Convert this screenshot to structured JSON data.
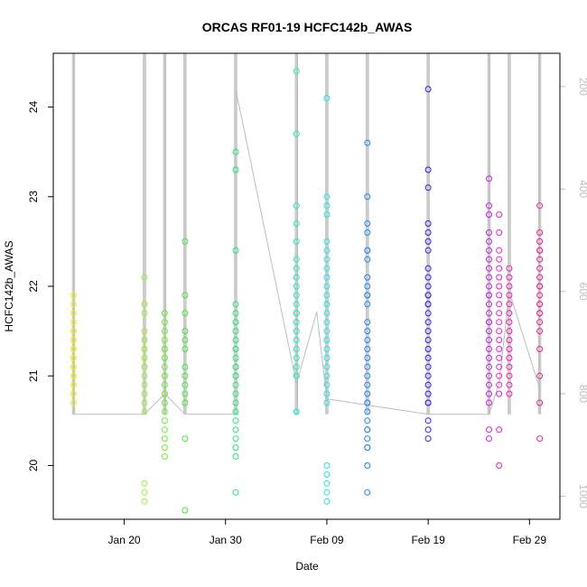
{
  "chart_data": {
    "type": "scatter",
    "title": "ORCAS RF01-19 HCFC142b_AWAS",
    "xlabel": "Date",
    "ylabel": "HCFC142b_AWAS",
    "xlim": [
      "2016-01-13",
      "2016-03-03"
    ],
    "ylim": [
      19.4,
      24.6
    ],
    "yticks": [
      20,
      21,
      22,
      23,
      24
    ],
    "xticks": [
      {
        "date": "2016-01-20",
        "label": "Jan 20"
      },
      {
        "date": "2016-01-30",
        "label": "Jan 30"
      },
      {
        "date": "2016-02-09",
        "label": "Feb 09"
      },
      {
        "date": "2016-02-19",
        "label": "Feb 19"
      },
      {
        "date": "2016-02-29",
        "label": "Feb 29"
      }
    ],
    "y2_axis": {
      "side": "right",
      "description": "altitude trace (reversed)",
      "lim": [
        1045,
        135
      ],
      "ticks": [
        200,
        400,
        600,
        800,
        1000
      ],
      "color": "#bdbdbd"
    },
    "grid": false,
    "legend": "none",
    "series": [
      {
        "date": "2016-01-15",
        "color": "#F2F200",
        "values": [
          21.9,
          21.8,
          21.7,
          21.6,
          21.5,
          21.5,
          21.4,
          21.4,
          21.3,
          21.3,
          21.3,
          21.2,
          21.2,
          21.1,
          21.1,
          21.0,
          21.0,
          20.9,
          20.9,
          20.8,
          20.7
        ]
      },
      {
        "date": "2016-01-22",
        "color": "#9BEF36",
        "values": [
          22.1,
          21.8,
          21.8,
          21.7,
          21.5,
          21.4,
          21.4,
          21.3,
          21.3,
          21.2,
          21.2,
          21.1,
          21.1,
          21.0,
          20.9,
          20.8,
          20.7,
          20.6,
          19.8,
          19.7,
          19.6
        ]
      },
      {
        "date": "2016-01-24",
        "color": "#6CEB2E",
        "values": [
          21.7,
          21.7,
          21.6,
          21.5,
          21.4,
          21.3,
          21.3,
          21.2,
          21.2,
          21.1,
          21.0,
          21.0,
          20.9,
          20.8,
          20.8,
          20.7,
          20.6,
          20.5,
          20.4,
          20.3,
          20.2,
          20.1
        ]
      },
      {
        "date": "2016-01-26",
        "color": "#3FE834",
        "values": [
          22.5,
          21.9,
          21.7,
          21.5,
          21.4,
          21.3,
          21.1,
          21.0,
          20.9,
          20.8,
          20.7,
          20.3,
          19.5
        ]
      },
      {
        "date": "2016-01-31",
        "color": "#1FE870",
        "values": [
          23.5,
          23.3,
          22.4,
          21.8,
          21.7,
          21.6,
          21.6,
          21.5,
          21.4,
          21.3,
          21.3,
          21.2,
          21.1,
          21.1,
          21.0,
          21.0,
          20.9,
          20.8,
          20.7,
          20.6,
          20.5,
          20.4,
          20.3,
          20.2,
          20.1,
          19.7
        ]
      },
      {
        "date": "2016-02-06",
        "color": "#1FECC4",
        "values": [
          24.4,
          23.7,
          22.9,
          22.7,
          22.5,
          22.3,
          22.2,
          22.1,
          22.0,
          21.9,
          21.8,
          21.7,
          21.7,
          21.6,
          21.5,
          21.4,
          21.3,
          21.2,
          21.1,
          21.0,
          21.0,
          20.6,
          20.6
        ]
      },
      {
        "date": "2016-02-09",
        "color": "#1FE4EE",
        "values": [
          24.1,
          23.0,
          22.9,
          22.8,
          22.5,
          22.4,
          22.3,
          22.2,
          22.1,
          22.0,
          21.9,
          21.8,
          21.8,
          21.7,
          21.6,
          21.5,
          21.4,
          21.3,
          21.2,
          21.1,
          21.0,
          20.9,
          20.8,
          20.7,
          20.0,
          19.9,
          19.8,
          19.7,
          19.6
        ]
      },
      {
        "date": "2016-02-13",
        "color": "#1F84EE",
        "values": [
          23.6,
          23.0,
          22.7,
          22.6,
          22.4,
          22.4,
          22.3,
          22.1,
          22.0,
          21.9,
          21.9,
          21.8,
          21.6,
          21.5,
          21.4,
          21.3,
          21.2,
          21.1,
          21.0,
          20.9,
          20.8,
          20.7,
          20.7,
          20.6,
          20.5,
          20.4,
          20.4,
          20.3,
          20.2,
          20.2,
          20.0,
          19.7
        ]
      },
      {
        "date": "2016-02-19",
        "color": "#2E1FE6",
        "values": [
          24.2,
          23.3,
          23.1,
          22.7,
          22.6,
          22.5,
          22.4,
          22.2,
          22.1,
          22.0,
          21.9,
          21.9,
          21.8,
          21.8,
          21.7,
          21.6,
          21.5,
          21.4,
          21.3,
          21.2,
          21.1,
          21.0,
          20.9,
          20.8,
          20.7,
          20.7,
          20.5,
          20.4,
          20.3
        ]
      },
      {
        "date": "2016-02-25",
        "color": "#C81FE8",
        "values": [
          23.2,
          22.9,
          22.8,
          22.6,
          22.5,
          22.4,
          22.3,
          22.2,
          22.1,
          22.0,
          21.9,
          21.9,
          21.8,
          21.7,
          21.6,
          21.6,
          21.5,
          21.4,
          21.3,
          21.2,
          21.1,
          21.0,
          20.9,
          20.8,
          20.7,
          20.4,
          20.3
        ]
      },
      {
        "date": "2016-02-26",
        "color": "#E81FC8",
        "values": [
          22.8,
          22.6,
          22.4,
          22.3,
          22.2,
          22.1,
          22.0,
          21.9,
          21.8,
          21.7,
          21.6,
          21.5,
          21.4,
          21.3,
          21.2,
          21.1,
          21.0,
          20.9,
          20.8,
          20.4,
          20.0
        ]
      },
      {
        "date": "2016-02-27",
        "color": "#E81FB8",
        "values": [
          22.2,
          22.1,
          22.0,
          21.9,
          21.8,
          21.7,
          21.6,
          21.5,
          21.4,
          21.3,
          21.2,
          21.1,
          21.0,
          20.9,
          20.8
        ]
      },
      {
        "date": "2016-03-01",
        "color": "#EE1FA0",
        "values": [
          22.9,
          22.6,
          22.5,
          22.4,
          22.4,
          22.3,
          22.2,
          22.1,
          22.0,
          22.0,
          21.9,
          21.8,
          21.8,
          21.7,
          21.7,
          21.6,
          21.5,
          21.3,
          21.0,
          20.7,
          20.3
        ]
      }
    ],
    "altitude_trace": {
      "color": "#bdbdbd",
      "points": [
        {
          "date": "2016-01-15",
          "value": 840
        },
        {
          "date": "2016-01-22",
          "value": 840
        },
        {
          "date": "2016-01-24",
          "value": 800
        },
        {
          "date": "2016-01-26",
          "value": 840
        },
        {
          "date": "2016-01-31",
          "value": 840
        },
        {
          "date": "2016-01-31",
          "value": 205
        },
        {
          "date": "2016-02-06",
          "value": 780
        },
        {
          "date": "2016-02-08",
          "value": 640
        },
        {
          "date": "2016-02-09",
          "value": 810
        },
        {
          "date": "2016-02-19",
          "value": 840
        },
        {
          "date": "2016-02-25",
          "value": 840
        },
        {
          "date": "2016-02-26",
          "value": 780
        },
        {
          "date": "2016-02-27",
          "value": 600
        },
        {
          "date": "2016-03-01",
          "value": 790
        }
      ],
      "profile_dates": [
        "2016-01-15",
        "2016-01-22",
        "2016-01-24",
        "2016-01-26",
        "2016-01-31",
        "2016-02-06",
        "2016-02-09",
        "2016-02-13",
        "2016-02-19",
        "2016-02-25",
        "2016-02-27",
        "2016-03-01"
      ],
      "profile_range": [
        135,
        840
      ]
    }
  }
}
